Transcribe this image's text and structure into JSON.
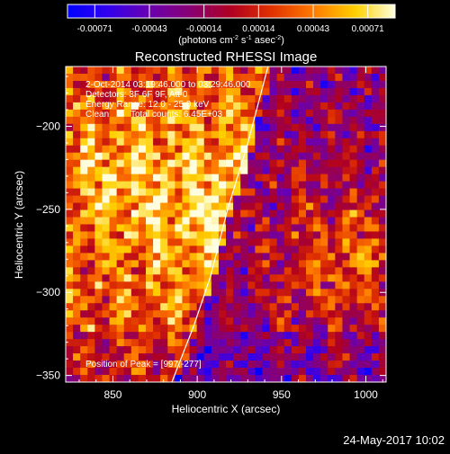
{
  "colorbar": {
    "ticks": [
      "-0.00071",
      "-0.00043",
      "-0.00014",
      "0.00014",
      "0.00043",
      "0.00071"
    ],
    "units": "(photons cm",
    "units_sup1": "-2",
    "units_mid": " s",
    "units_sup2": "-1",
    "units_mid2": " asec",
    "units_sup3": "-2",
    "units_end": ")"
  },
  "annotations": {
    "time": "2-Oct-2014 03:19:46.000 to 03:29:46.000",
    "detectors": "Detectors: 3F 6F 9F, Att 0",
    "energy": "Energy Range: 12.0 - 25.0 keV",
    "clean": "Clean",
    "counts": "Total counts: 6.45E+03",
    "peak": "Position of Peak = [997,-277]"
  },
  "footer": {
    "date": "24-May-2017 10:02"
  },
  "colors": {
    "limb": "#ffffff",
    "axis": "#ffffff",
    "background": "#000000"
  },
  "chart_data": {
    "type": "heatmap",
    "title": "Reconstructed RHESSI Image",
    "xlabel": "Heliocentric X (arcsec)",
    "ylabel": "Heliocentric Y (arcsec)",
    "xlim": [
      822,
      1012
    ],
    "ylim": [
      -354,
      -164
    ],
    "xticks": [
      850,
      900,
      950,
      1000
    ],
    "xtick_labels": [
      "850",
      "900",
      "950",
      "1000"
    ],
    "yticks": [
      -200,
      -250,
      -300,
      -350
    ],
    "ytick_labels": [
      "−200",
      "−250",
      "−300",
      "−350"
    ],
    "colorscale": {
      "min": -0.00071,
      "max": 0.00071
    },
    "peak": {
      "x": 997,
      "y": -277
    },
    "limb_points": [
      [
        942,
        -164
      ],
      [
        930,
        -210
      ],
      [
        918,
        -250
      ],
      [
        908,
        -290
      ],
      [
        898,
        -320
      ],
      [
        885,
        -354
      ]
    ]
  }
}
